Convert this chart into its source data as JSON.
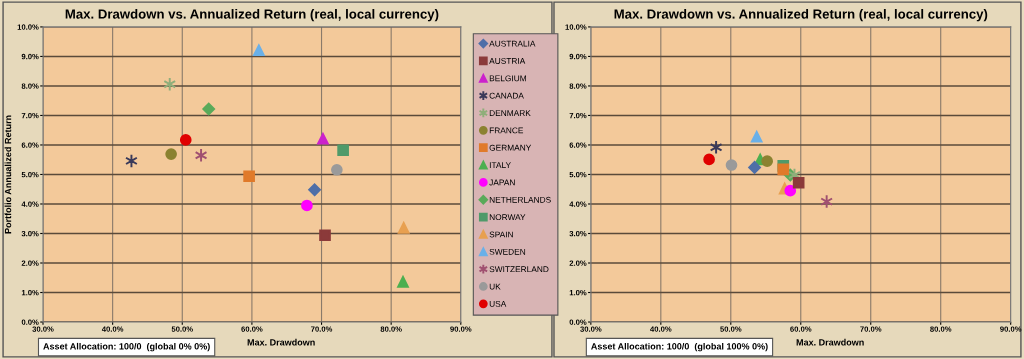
{
  "chart_data": [
    {
      "type": "scatter",
      "title": "Max. Drawdown vs. Annualized Return (real, local currency)",
      "xlabel": "Max. Drawdown",
      "ylabel": "Portfolio Annualized Return",
      "annotations": [
        "Asset Allocation: 100/0  (global 0% 0%)"
      ],
      "xlim": [
        30,
        90
      ],
      "ylim": [
        0,
        10
      ],
      "xticks": [
        {
          "value": 30,
          "label": "30.0%"
        },
        {
          "value": 40,
          "label": "40.0%"
        },
        {
          "value": 50,
          "label": "50.0%"
        },
        {
          "value": 60,
          "label": "60.0%"
        },
        {
          "value": 70,
          "label": "70.0%"
        },
        {
          "value": 80,
          "label": "80.0%"
        },
        {
          "value": 90,
          "label": "90.0%"
        }
      ],
      "yticks": [
        {
          "value": 0,
          "label": "0.0%"
        },
        {
          "value": 1,
          "label": "1.0%"
        },
        {
          "value": 2,
          "label": "2.0%"
        },
        {
          "value": 3,
          "label": "3.0%"
        },
        {
          "value": 4,
          "label": "4.0%"
        },
        {
          "value": 5,
          "label": "5.0%"
        },
        {
          "value": 6,
          "label": "6.0%"
        },
        {
          "value": 7,
          "label": "7.0%"
        },
        {
          "value": 8,
          "label": "8.0%"
        },
        {
          "value": 9,
          "label": "9.0%"
        },
        {
          "value": 10,
          "label": "10.0%"
        }
      ],
      "grid": true,
      "legend": "right",
      "series": [
        {
          "name": "AUSTRALIA",
          "color": "#4f6fa8",
          "marker": "diamond",
          "x": [
            69.0
          ],
          "values": [
            4.48
          ]
        },
        {
          "name": "AUSTRIA",
          "color": "#8b3a3a",
          "marker": "square",
          "x": [
            70.5
          ],
          "values": [
            2.94
          ]
        },
        {
          "name": "BELGIUM",
          "color": "#cc22cc",
          "marker": "triangle",
          "x": [
            70.2
          ],
          "values": [
            6.21
          ]
        },
        {
          "name": "CANADA",
          "color": "#3a3a5a",
          "marker": "cross",
          "x": [
            42.7
          ],
          "values": [
            5.46
          ]
        },
        {
          "name": "DENMARK",
          "color": "#8fae7a",
          "marker": "cross",
          "x": [
            48.2
          ],
          "values": [
            8.06
          ]
        },
        {
          "name": "FRANCE",
          "color": "#8b8230",
          "marker": "circle",
          "x": [
            48.4
          ],
          "values": [
            5.69
          ]
        },
        {
          "name": "GERMANY",
          "color": "#e07a2a",
          "marker": "square",
          "x": [
            59.6
          ],
          "values": [
            4.94
          ]
        },
        {
          "name": "ITALY",
          "color": "#4caf50",
          "marker": "triangle",
          "x": [
            81.7
          ],
          "values": [
            1.36
          ]
        },
        {
          "name": "JAPAN",
          "color": "#ff00ff",
          "marker": "circle",
          "x": [
            67.9
          ],
          "values": [
            3.95
          ]
        },
        {
          "name": "NETHERLANDS",
          "color": "#5aaa5a",
          "marker": "diamond",
          "x": [
            53.8
          ],
          "values": [
            7.22
          ]
        },
        {
          "name": "NORWAY",
          "color": "#4f9a6a",
          "marker": "square",
          "x": [
            73.1
          ],
          "values": [
            5.82
          ]
        },
        {
          "name": "SPAIN",
          "color": "#e8a050",
          "marker": "triangle",
          "x": [
            81.8
          ],
          "values": [
            3.19
          ]
        },
        {
          "name": "SWEDEN",
          "color": "#6ab0e8",
          "marker": "triangle",
          "x": [
            61.0
          ],
          "values": [
            9.21
          ]
        },
        {
          "name": "SWITZERLAND",
          "color": "#a05070",
          "marker": "cross",
          "x": [
            52.7
          ],
          "values": [
            5.65
          ]
        },
        {
          "name": "UK",
          "color": "#9a9a9a",
          "marker": "circle",
          "x": [
            72.2
          ],
          "values": [
            5.16
          ]
        },
        {
          "name": "USA",
          "color": "#e00000",
          "marker": "circle",
          "x": [
            50.5
          ],
          "values": [
            6.17
          ]
        }
      ]
    },
    {
      "type": "scatter",
      "title": "Max. Drawdown vs. Annualized Return (real, local currency)",
      "xlabel": "Max. Drawdown",
      "annotations": [
        "Asset Allocation: 100/0  (global 100% 0%)"
      ],
      "xlim": [
        30,
        90
      ],
      "ylim": [
        0,
        10
      ],
      "xticks": [
        {
          "value": 30,
          "label": "30.0%"
        },
        {
          "value": 40,
          "label": "40.0%"
        },
        {
          "value": 50,
          "label": "50.0%"
        },
        {
          "value": 60,
          "label": "60.0%"
        },
        {
          "value": 70,
          "label": "70.0%"
        },
        {
          "value": 80,
          "label": "80.0%"
        },
        {
          "value": 90,
          "label": "90.0%"
        }
      ],
      "yticks": [
        {
          "value": 0,
          "label": "0.0%"
        },
        {
          "value": 1,
          "label": "1.0%"
        },
        {
          "value": 2,
          "label": "2.0%"
        },
        {
          "value": 3,
          "label": "3.0%"
        },
        {
          "value": 4,
          "label": "4.0%"
        },
        {
          "value": 5,
          "label": "5.0%"
        },
        {
          "value": 6,
          "label": "6.0%"
        },
        {
          "value": 7,
          "label": "7.0%"
        },
        {
          "value": 8,
          "label": "8.0%"
        },
        {
          "value": 9,
          "label": "9.0%"
        },
        {
          "value": 10,
          "label": "10.0%"
        }
      ],
      "grid": true,
      "series": [
        {
          "color": "#4f6fa8",
          "marker": "diamond",
          "x": [
            53.4
          ],
          "values": [
            5.24
          ]
        },
        {
          "color": "#8b3a3a",
          "marker": "square",
          "x": [
            59.7
          ],
          "values": [
            4.72
          ]
        },
        {
          "color": "#3a3a5a",
          "marker": "cross",
          "x": [
            47.9
          ],
          "values": [
            5.92
          ]
        },
        {
          "color": "#8fae7a",
          "marker": "cross",
          "x": [
            59.1
          ],
          "values": [
            4.98
          ]
        },
        {
          "color": "#8b8230",
          "marker": "circle",
          "x": [
            55.2
          ],
          "values": [
            5.45
          ]
        },
        {
          "color": "#e07a2a",
          "marker": "square",
          "x": [
            57.5
          ],
          "values": [
            5.17
          ]
        },
        {
          "color": "#4caf50",
          "marker": "triangle",
          "x": [
            54.2
          ],
          "values": [
            5.51
          ]
        },
        {
          "color": "#ff00ff",
          "marker": "circle",
          "x": [
            58.5
          ],
          "values": [
            4.45
          ]
        },
        {
          "color": "#5aaa5a",
          "marker": "diamond",
          "x": [
            58.5
          ],
          "values": [
            4.98
          ]
        },
        {
          "color": "#4f9a6a",
          "marker": "square",
          "x": [
            57.5
          ],
          "values": [
            5.29
          ]
        },
        {
          "color": "#e8a050",
          "marker": "triangle",
          "x": [
            57.7
          ],
          "values": [
            4.52
          ]
        },
        {
          "color": "#6ab0e8",
          "marker": "triangle",
          "x": [
            53.7
          ],
          "values": [
            6.28
          ]
        },
        {
          "color": "#a05070",
          "marker": "cross",
          "x": [
            63.7
          ],
          "values": [
            4.08
          ]
        },
        {
          "color": "#9a9a9a",
          "marker": "circle",
          "x": [
            50.1
          ],
          "values": [
            5.32
          ]
        },
        {
          "color": "#e00000",
          "marker": "circle",
          "x": [
            46.9
          ],
          "values": [
            5.51
          ]
        }
      ]
    }
  ]
}
